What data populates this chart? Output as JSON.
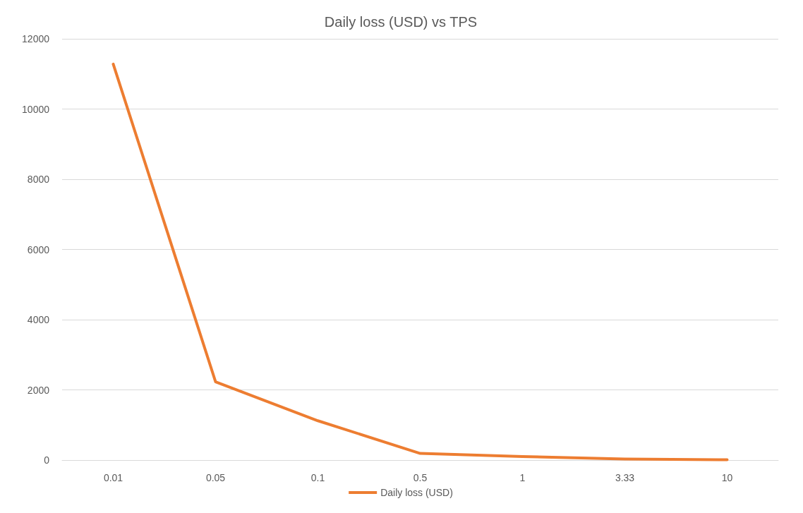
{
  "chart_data": {
    "type": "line",
    "title": "Daily loss (USD) vs TPS",
    "categories": [
      "0.01",
      "0.05",
      "0.1",
      "0.5",
      "1",
      "3.33",
      "10"
    ],
    "series": [
      {
        "name": "Daily loss (USD)",
        "color": "#ed7d31",
        "values": [
          11280,
          2230,
          1120,
          190,
          100,
          30,
          10
        ]
      }
    ],
    "ylim": [
      0,
      12000
    ],
    "yticks": [
      0,
      2000,
      4000,
      6000,
      8000,
      10000,
      12000
    ],
    "grid": "y",
    "legend": "bottom",
    "marker": "none",
    "line_style": "solid"
  }
}
